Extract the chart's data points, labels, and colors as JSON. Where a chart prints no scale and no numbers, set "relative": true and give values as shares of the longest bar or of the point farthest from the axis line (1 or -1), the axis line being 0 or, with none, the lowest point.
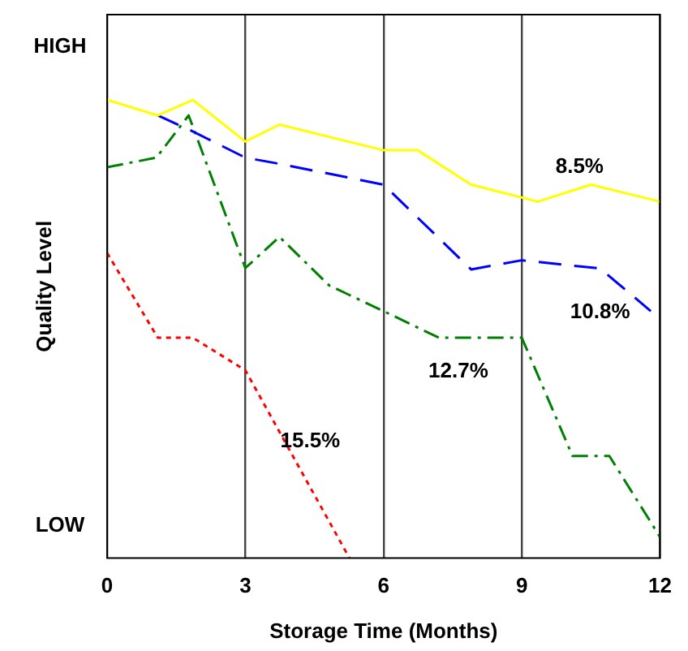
{
  "chart_data": {
    "type": "line",
    "xlabel": "Storage Time (Months)",
    "ylabel": "Quality Level",
    "relative": true,
    "xlim": [
      0,
      12
    ],
    "xticks": [
      0,
      3,
      6,
      9,
      12
    ],
    "grid": "x",
    "marker": "none",
    "series": [
      {
        "name": "8.5%",
        "color": "#ffff00",
        "line_style": "solid",
        "x": [
          0,
          1.1,
          1.86,
          3,
          3.74,
          6,
          6.74,
          7.9,
          9.35,
          10.5,
          12
        ],
        "values": [
          1.0,
          0.966,
          1.0,
          0.909,
          0.946,
          0.89,
          0.89,
          0.815,
          0.778,
          0.815,
          0.778
        ]
      },
      {
        "name": "10.8%",
        "color": "#0000ff",
        "line_style": "dashed",
        "x": [
          1.1,
          1.8,
          3,
          3.76,
          6,
          7.9,
          9,
          10.7,
          11.8
        ],
        "values": [
          0.966,
          0.934,
          0.874,
          0.86,
          0.815,
          0.63,
          0.65,
          0.632,
          0.539
        ]
      },
      {
        "name": "12.7%",
        "color": "#008000",
        "line_style": "dashdot",
        "x": [
          0,
          1.07,
          1.77,
          3,
          3.74,
          4.82,
          6,
          7.2,
          9,
          10.1,
          10.9,
          12
        ],
        "values": [
          0.853,
          0.874,
          0.966,
          0.633,
          0.701,
          0.595,
          0.539,
          0.481,
          0.481,
          0.223,
          0.223,
          0.046
        ]
      },
      {
        "name": "15.5%",
        "color": "#ff0000",
        "line_style": "dotted",
        "x": [
          0,
          1.1,
          1.86,
          3,
          5.26
        ],
        "values": [
          0.666,
          0.481,
          0.481,
          0.41,
          0
        ]
      }
    ],
    "annotations": [
      "HIGH",
      "LOW"
    ]
  }
}
